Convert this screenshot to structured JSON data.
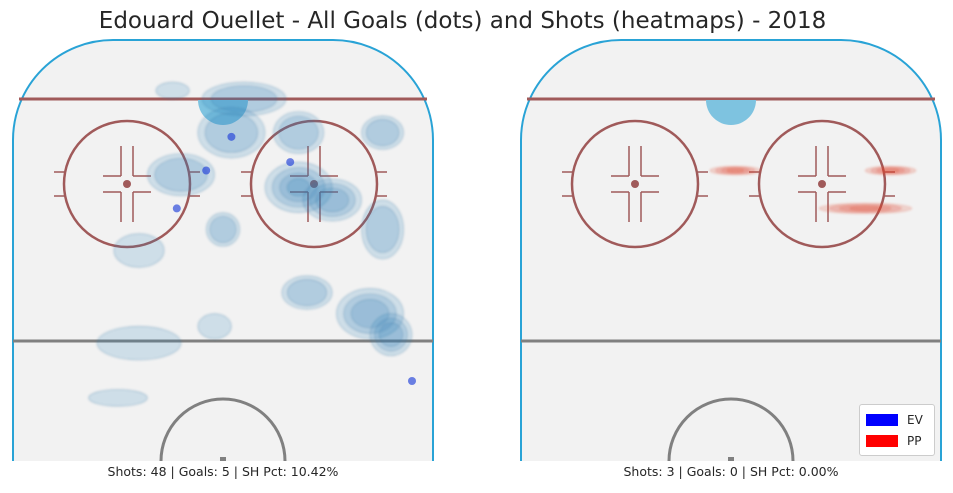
{
  "chart_data": {
    "type": "heatmap",
    "title": "Edouard Ouellet - All Goals (dots) and Shots (heatmaps) - 2018",
    "legend": {
      "placement": "bottom-right",
      "entries": [
        {
          "label": "EV",
          "color": "#0000ff"
        },
        {
          "label": "PP",
          "color": "#ff0000"
        }
      ]
    },
    "panels": [
      {
        "strength": "EV",
        "caption": "Shots: 48 | Goals: 5 | SH Pct: 10.42%",
        "shots": 48,
        "goals_count": 5,
        "sh_pct": 10.42,
        "heat_color": "#2a7fb8",
        "goal_color": "#1f3fd8",
        "shot_density": [
          {
            "x": 0.38,
            "y": 0.88,
            "rx": 0.04,
            "ry": 0.02,
            "w": 0.3
          },
          {
            "x": 0.55,
            "y": 0.86,
            "rx": 0.1,
            "ry": 0.04,
            "w": 0.4
          },
          {
            "x": 0.52,
            "y": 0.78,
            "rx": 0.08,
            "ry": 0.06,
            "w": 0.5
          },
          {
            "x": 0.68,
            "y": 0.78,
            "rx": 0.06,
            "ry": 0.05,
            "w": 0.5
          },
          {
            "x": 0.88,
            "y": 0.78,
            "rx": 0.05,
            "ry": 0.04,
            "w": 0.4
          },
          {
            "x": 0.68,
            "y": 0.65,
            "rx": 0.08,
            "ry": 0.06,
            "w": 1.0
          },
          {
            "x": 0.76,
            "y": 0.62,
            "rx": 0.07,
            "ry": 0.05,
            "w": 0.7
          },
          {
            "x": 0.88,
            "y": 0.55,
            "rx": 0.05,
            "ry": 0.07,
            "w": 0.6
          },
          {
            "x": 0.85,
            "y": 0.35,
            "rx": 0.08,
            "ry": 0.06,
            "w": 0.8
          },
          {
            "x": 0.9,
            "y": 0.3,
            "rx": 0.05,
            "ry": 0.05,
            "w": 0.7
          },
          {
            "x": 0.5,
            "y": 0.55,
            "rx": 0.04,
            "ry": 0.04,
            "w": 0.4
          },
          {
            "x": 0.4,
            "y": 0.68,
            "rx": 0.08,
            "ry": 0.05,
            "w": 0.4
          },
          {
            "x": 0.3,
            "y": 0.5,
            "rx": 0.06,
            "ry": 0.04,
            "w": 0.3
          },
          {
            "x": 0.3,
            "y": 0.28,
            "rx": 0.1,
            "ry": 0.04,
            "w": 0.3
          },
          {
            "x": 0.48,
            "y": 0.32,
            "rx": 0.04,
            "ry": 0.03,
            "w": 0.3
          },
          {
            "x": 0.25,
            "y": 0.15,
            "rx": 0.07,
            "ry": 0.02,
            "w": 0.3
          },
          {
            "x": 0.7,
            "y": 0.4,
            "rx": 0.06,
            "ry": 0.04,
            "w": 0.5
          }
        ],
        "goals": [
          {
            "x": 0.52,
            "y": 0.77
          },
          {
            "x": 0.46,
            "y": 0.69
          },
          {
            "x": 0.39,
            "y": 0.6
          },
          {
            "x": 0.66,
            "y": 0.71
          },
          {
            "x": 0.95,
            "y": 0.19
          }
        ]
      },
      {
        "strength": "PP",
        "caption": "Shots: 3 | Goals: 0 | SH Pct: 0.00%",
        "shots": 3,
        "goals_count": 0,
        "sh_pct": 0.0,
        "heat_color": "#e0452b",
        "goal_color": "#e01010",
        "shot_density": [
          {
            "x": 0.51,
            "y": 0.69,
            "rx": 0.06,
            "ry": 0.01,
            "w": 0.9
          },
          {
            "x": 0.88,
            "y": 0.69,
            "rx": 0.06,
            "ry": 0.01,
            "w": 0.9
          },
          {
            "x": 0.82,
            "y": 0.6,
            "rx": 0.11,
            "ry": 0.012,
            "w": 0.9
          }
        ],
        "goals": []
      }
    ]
  }
}
